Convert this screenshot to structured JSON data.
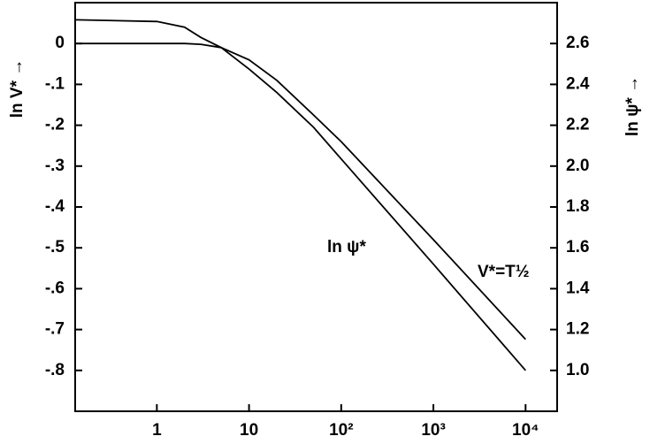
{
  "chart_data": {
    "type": "line",
    "xscale": "log",
    "x": [
      0.13,
      1,
      2,
      3,
      5,
      10,
      20,
      50,
      100,
      1000,
      10000
    ],
    "series": [
      {
        "name": "V*=T½",
        "color": "#000000",
        "values": [
          0,
          0,
          0,
          -0.002,
          -0.01,
          -0.04,
          -0.09,
          -0.175,
          -0.24,
          -0.48,
          -0.724
        ]
      },
      {
        "name": "ln ψ*",
        "color": "#000000",
        "axis": "y2",
        "values": [
          2.716,
          2.708,
          2.68,
          2.63,
          2.58,
          2.475,
          2.36,
          2.19,
          2.035,
          1.52,
          1.0
        ]
      }
    ],
    "ylabel": "ln V* →",
    "y2label": "ln ψ* →",
    "xlim": [
      0.13,
      22000
    ],
    "xticks": [
      1,
      10,
      {
        "value": 100,
        "label": "10²"
      },
      {
        "value": 1000,
        "label": "10³"
      },
      {
        "value": 10000,
        "label": "10⁴"
      }
    ],
    "ylim": [
      -0.9,
      0.1
    ],
    "yticks": [
      0,
      {
        "value": -0.1,
        "label": "-.1"
      },
      {
        "value": -0.2,
        "label": "-.2"
      },
      {
        "value": -0.3,
        "label": "-.3"
      },
      {
        "value": -0.4,
        "label": "-.4"
      },
      {
        "value": -0.5,
        "label": "-.5"
      },
      {
        "value": -0.6,
        "label": "-.6"
      },
      {
        "value": -0.7,
        "label": "-.7"
      },
      {
        "value": -0.8,
        "label": "-.8"
      }
    ],
    "y2lim": [
      0.8,
      2.8
    ],
    "y2ticks": [
      2.6,
      2.4,
      2.2,
      {
        "value": 2.0,
        "label": "2.0"
      },
      1.8,
      1.6,
      1.4,
      1.2,
      {
        "value": 1.0,
        "label": "1.0"
      }
    ],
    "grid": false
  }
}
